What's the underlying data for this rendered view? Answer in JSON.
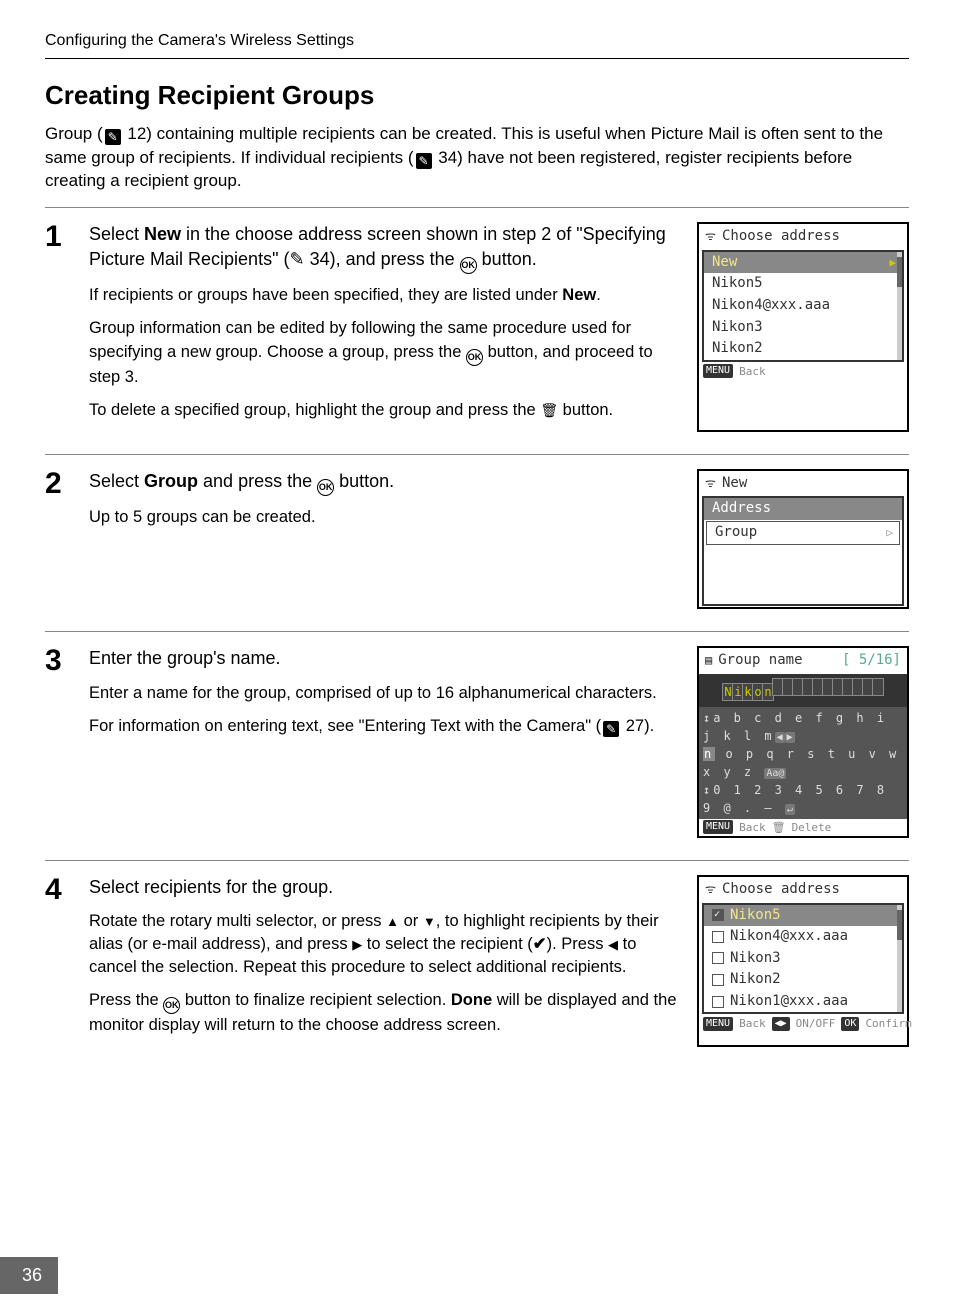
{
  "running_head": "Configuring the Camera's Wireless Settings",
  "section_title": "Creating Recipient Groups",
  "intro_parts": {
    "a": "Group (",
    "ref1": "12",
    "b": ") containing multiple recipients can be created. This is useful when Picture Mail is often sent to the same group of recipients. If individual recipients (",
    "ref2": "34",
    "c": ") have not been registered, register recipients before creating a recipient group."
  },
  "steps": {
    "1": {
      "num": "1",
      "head_a": "Select ",
      "head_bold1": "New",
      "head_b": " in the choose address screen shown in step 2 of \"Specifying Picture Mail Recipients\" (",
      "head_ref": "34",
      "head_c": "), and press the ",
      "head_d": " button.",
      "p1a": "If recipients or groups have been specified, they are listed under ",
      "p1bold": "New",
      "p1b": ".",
      "p2a": "Group information can be edited by following the same procedure used for specifying a new group. Choose a group, press the ",
      "p2b": " button, and proceed to step 3.",
      "p3a": "To delete a specified group, highlight the group and press the ",
      "p3b": " button."
    },
    "2": {
      "num": "2",
      "head_a": "Select ",
      "head_bold": "Group",
      "head_b": " and press the ",
      "head_c": " button.",
      "p1": "Up to 5 groups can be created."
    },
    "3": {
      "num": "3",
      "head": "Enter the group's name.",
      "p1": "Enter a name for the group, comprised of up to 16 alphanumerical characters.",
      "p2a": "For information on entering text, see \"Entering Text with the Camera\" (",
      "p2ref": "27",
      "p2b": ")."
    },
    "4": {
      "num": "4",
      "head": "Select recipients for the group.",
      "p1a": "Rotate the rotary multi selector, or press ",
      "p1b": " or ",
      "p1c": ", to highlight recipients by their alias (or e-mail address), and press ",
      "p1d": " to select the recipient (",
      "p1e": "). Press ",
      "p1f": " to cancel the selection. Repeat this procedure to select additional recipients.",
      "p2a": "Press the ",
      "p2b": " button to finalize recipient selection. ",
      "p2bold": "Done",
      "p2c": " will be displayed and the monitor display will return to the choose address screen."
    }
  },
  "lcd1": {
    "title": "Choose address",
    "rows": [
      "New",
      "Nikon5",
      "Nikon4@xxx.aaa",
      "Nikon3",
      "Nikon2"
    ],
    "footer_back": "Back"
  },
  "lcd2": {
    "title": "New",
    "rows": [
      "Address",
      "Group"
    ]
  },
  "lcd3": {
    "title": "Group name",
    "counter": "[  5/16]",
    "input": [
      "N",
      "i",
      "k",
      "o",
      "n",
      "",
      "",
      "",
      "",
      "",
      "",
      "",
      "",
      "",
      "",
      ""
    ],
    "row1": "a b c d e f g h i j k l m",
    "row2_hl": "n",
    "row2": " o p q r s t u v w x y z",
    "row3": "0 1 2 3 4 5 6 7 8 9 @ . –",
    "footer_back": "Back",
    "footer_delete": "Delete"
  },
  "lcd4": {
    "title": "Choose address",
    "rows": [
      {
        "checked": true,
        "label": "Nikon5"
      },
      {
        "checked": false,
        "label": "Nikon4@xxx.aaa"
      },
      {
        "checked": false,
        "label": "Nikon3"
      },
      {
        "checked": false,
        "label": "Nikon2"
      },
      {
        "checked": false,
        "label": "Nikon1@xxx.aaa"
      }
    ],
    "footer_back": "Back",
    "footer_onoff": "ON/OFF",
    "footer_confirm": "Confirm"
  },
  "page_number": "36",
  "glyphs": {
    "ok": "OK",
    "up": "▲",
    "down": "▼",
    "left": "◀",
    "right": "▶",
    "check": "✔"
  }
}
